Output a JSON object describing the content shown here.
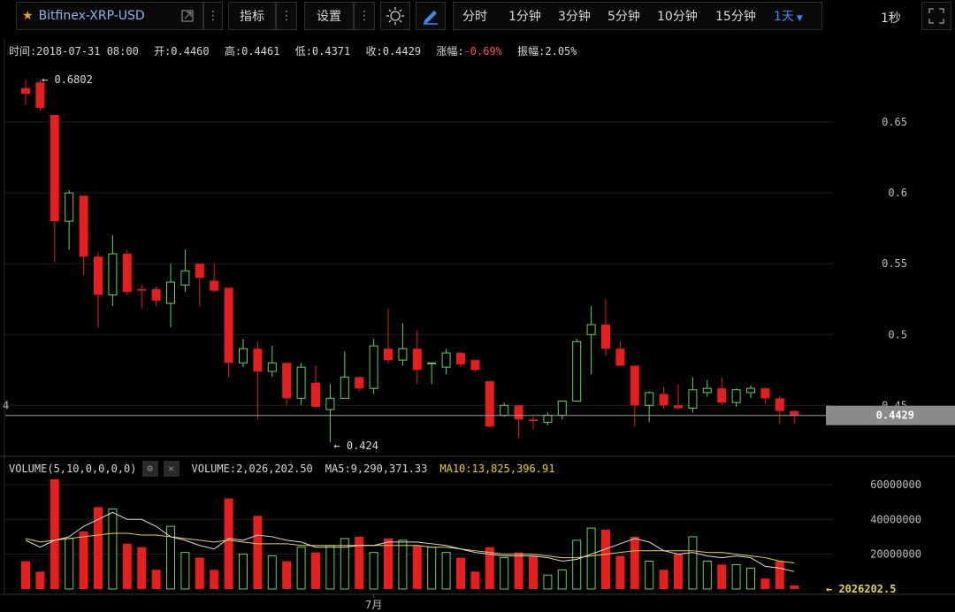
{
  "toolbar": {
    "symbol": "Bitfinex-XRP-USD",
    "indicators_label": "指标",
    "settings_label": "设置",
    "periods": [
      "分时",
      "1分钟",
      "3分钟",
      "5分钟",
      "10分钟",
      "15分钟"
    ],
    "active_period": "1天",
    "refresh": "1秒"
  },
  "info": {
    "time": "时间:2018-07-31 08:00",
    "open": "开:0.4460",
    "high": "高:0.4461",
    "low": "低:0.4371",
    "close": "收:0.4429",
    "change_label": "涨幅:",
    "change_value": "-0.69%",
    "amplitude": "振幅:2.05%"
  },
  "volume_info": {
    "label": "VOLUME(5,10,0,0,0,0)",
    "volume": "VOLUME:2,026,202.50",
    "ma5": "MA5:9,290,371.33",
    "ma10": "MA10:13,825,396.91"
  },
  "colors": {
    "up": "#5fd35f",
    "down": "#e61e1e",
    "ma5": "#dddddd",
    "ma10": "#e8d24a",
    "accent": "#3c8cf0"
  },
  "chart_data": {
    "type": "candlestick",
    "y_ticks": [
      0.45,
      0.5,
      0.55,
      0.6,
      0.65
    ],
    "ylim": [
      0.4165,
      0.6925
    ],
    "x_tick_label": "7月",
    "x_tick_index": 24,
    "max_label": "← 0.6802",
    "min_label": "← 0.424",
    "last_price": "0.4429",
    "left_edge_label": "4",
    "ohlc": [
      [
        0.674,
        0.68,
        0.662,
        0.67
      ],
      [
        0.678,
        0.68,
        0.658,
        0.66
      ],
      [
        0.655,
        0.655,
        0.551,
        0.58
      ],
      [
        0.58,
        0.602,
        0.56,
        0.6
      ],
      [
        0.598,
        0.598,
        0.542,
        0.555
      ],
      [
        0.555,
        0.558,
        0.505,
        0.528
      ],
      [
        0.528,
        0.57,
        0.52,
        0.557
      ],
      [
        0.557,
        0.56,
        0.528,
        0.53
      ],
      [
        0.532,
        0.535,
        0.518,
        0.531
      ],
      [
        0.532,
        0.534,
        0.52,
        0.524
      ],
      [
        0.522,
        0.55,
        0.505,
        0.537
      ],
      [
        0.535,
        0.56,
        0.53,
        0.545
      ],
      [
        0.55,
        0.55,
        0.52,
        0.54
      ],
      [
        0.538,
        0.55,
        0.53,
        0.531
      ],
      [
        0.533,
        0.533,
        0.47,
        0.48
      ],
      [
        0.48,
        0.497,
        0.477,
        0.49
      ],
      [
        0.49,
        0.495,
        0.44,
        0.474
      ],
      [
        0.474,
        0.492,
        0.47,
        0.48
      ],
      [
        0.48,
        0.48,
        0.45,
        0.455
      ],
      [
        0.455,
        0.48,
        0.45,
        0.477
      ],
      [
        0.466,
        0.478,
        0.448,
        0.449
      ],
      [
        0.447,
        0.465,
        0.424,
        0.455
      ],
      [
        0.455,
        0.488,
        0.455,
        0.47
      ],
      [
        0.47,
        0.47,
        0.46,
        0.462
      ],
      [
        0.462,
        0.497,
        0.458,
        0.492
      ],
      [
        0.49,
        0.518,
        0.48,
        0.482
      ],
      [
        0.482,
        0.508,
        0.478,
        0.49
      ],
      [
        0.49,
        0.503,
        0.465,
        0.475
      ],
      [
        0.48,
        0.48,
        0.465,
        0.48
      ],
      [
        0.477,
        0.49,
        0.472,
        0.487
      ],
      [
        0.487,
        0.488,
        0.477,
        0.479
      ],
      [
        0.482,
        0.482,
        0.474,
        0.475
      ],
      [
        0.467,
        0.467,
        0.434,
        0.435
      ],
      [
        0.443,
        0.452,
        0.442,
        0.45
      ],
      [
        0.45,
        0.45,
        0.427,
        0.44
      ],
      [
        0.44,
        0.442,
        0.433,
        0.439
      ],
      [
        0.438,
        0.445,
        0.436,
        0.443
      ],
      [
        0.443,
        0.452,
        0.44,
        0.453
      ],
      [
        0.453,
        0.497,
        0.453,
        0.495
      ],
      [
        0.5,
        0.52,
        0.472,
        0.507
      ],
      [
        0.507,
        0.525,
        0.485,
        0.49
      ],
      [
        0.49,
        0.495,
        0.478,
        0.478
      ],
      [
        0.478,
        0.478,
        0.435,
        0.45
      ],
      [
        0.45,
        0.46,
        0.438,
        0.459
      ],
      [
        0.458,
        0.463,
        0.448,
        0.45
      ],
      [
        0.45,
        0.465,
        0.447,
        0.448
      ],
      [
        0.448,
        0.47,
        0.445,
        0.461
      ],
      [
        0.459,
        0.468,
        0.456,
        0.462
      ],
      [
        0.462,
        0.47,
        0.45,
        0.452
      ],
      [
        0.452,
        0.462,
        0.449,
        0.461
      ],
      [
        0.459,
        0.464,
        0.455,
        0.462
      ],
      [
        0.462,
        0.462,
        0.451,
        0.455
      ],
      [
        0.455,
        0.457,
        0.437,
        0.446
      ],
      [
        0.446,
        0.4461,
        0.4371,
        0.4429
      ]
    ],
    "volume_ticks": [
      20000000,
      40000000,
      60000000
    ],
    "volume_max": 64000000,
    "volume_last_label": "← 2026202.5",
    "volume": [
      16000000,
      10000000,
      63000000,
      29000000,
      33000000,
      47000000,
      46000000,
      26000000,
      24000000,
      11000000,
      36000000,
      21000000,
      18000000,
      11000000,
      52000000,
      20000000,
      42000000,
      19000000,
      16000000,
      24000000,
      21000000,
      25000000,
      29000000,
      30000000,
      21000000,
      29000000,
      28000000,
      25000000,
      24000000,
      21000000,
      18000000,
      10000000,
      24000000,
      18000000,
      21000000,
      19000000,
      8000000,
      11000000,
      28000000,
      35000000,
      34000000,
      19000000,
      30000000,
      16000000,
      11000000,
      20000000,
      30000000,
      16000000,
      14000000,
      14000000,
      12000000,
      6000000,
      16000000,
      2026202.5
    ],
    "ma5": [
      28000000,
      24000000,
      28000000,
      30000000,
      36000000,
      40000000,
      44000000,
      40000000,
      40000000,
      36000000,
      30000000,
      28000000,
      25000000,
      23000000,
      29000000,
      28000000,
      31000000,
      30000000,
      28000000,
      27000000,
      24000000,
      24000000,
      24000000,
      25000000,
      25000000,
      27000000,
      27000000,
      27000000,
      26000000,
      25000000,
      23000000,
      21000000,
      20000000,
      19000000,
      19000000,
      19000000,
      18000000,
      16000000,
      17000000,
      20000000,
      23000000,
      26000000,
      29000000,
      27000000,
      22000000,
      20000000,
      21000000,
      19000000,
      18000000,
      19000000,
      18000000,
      13000000,
      12000000,
      10000000
    ],
    "ma10": [
      29000000,
      27000000,
      28000000,
      29000000,
      30000000,
      31000000,
      32000000,
      32000000,
      31000000,
      31000000,
      30000000,
      29000000,
      28000000,
      27000000,
      28000000,
      27000000,
      26000000,
      26000000,
      26000000,
      25000000,
      25000000,
      25000000,
      25000000,
      25000000,
      25000000,
      25000000,
      25000000,
      25000000,
      24000000,
      24000000,
      23000000,
      22000000,
      21000000,
      20000000,
      20000000,
      20000000,
      19000000,
      18000000,
      18000000,
      19000000,
      20000000,
      21000000,
      22000000,
      22000000,
      22000000,
      22000000,
      22000000,
      21000000,
      21000000,
      20000000,
      19000000,
      18000000,
      16000000,
      15000000
    ]
  }
}
